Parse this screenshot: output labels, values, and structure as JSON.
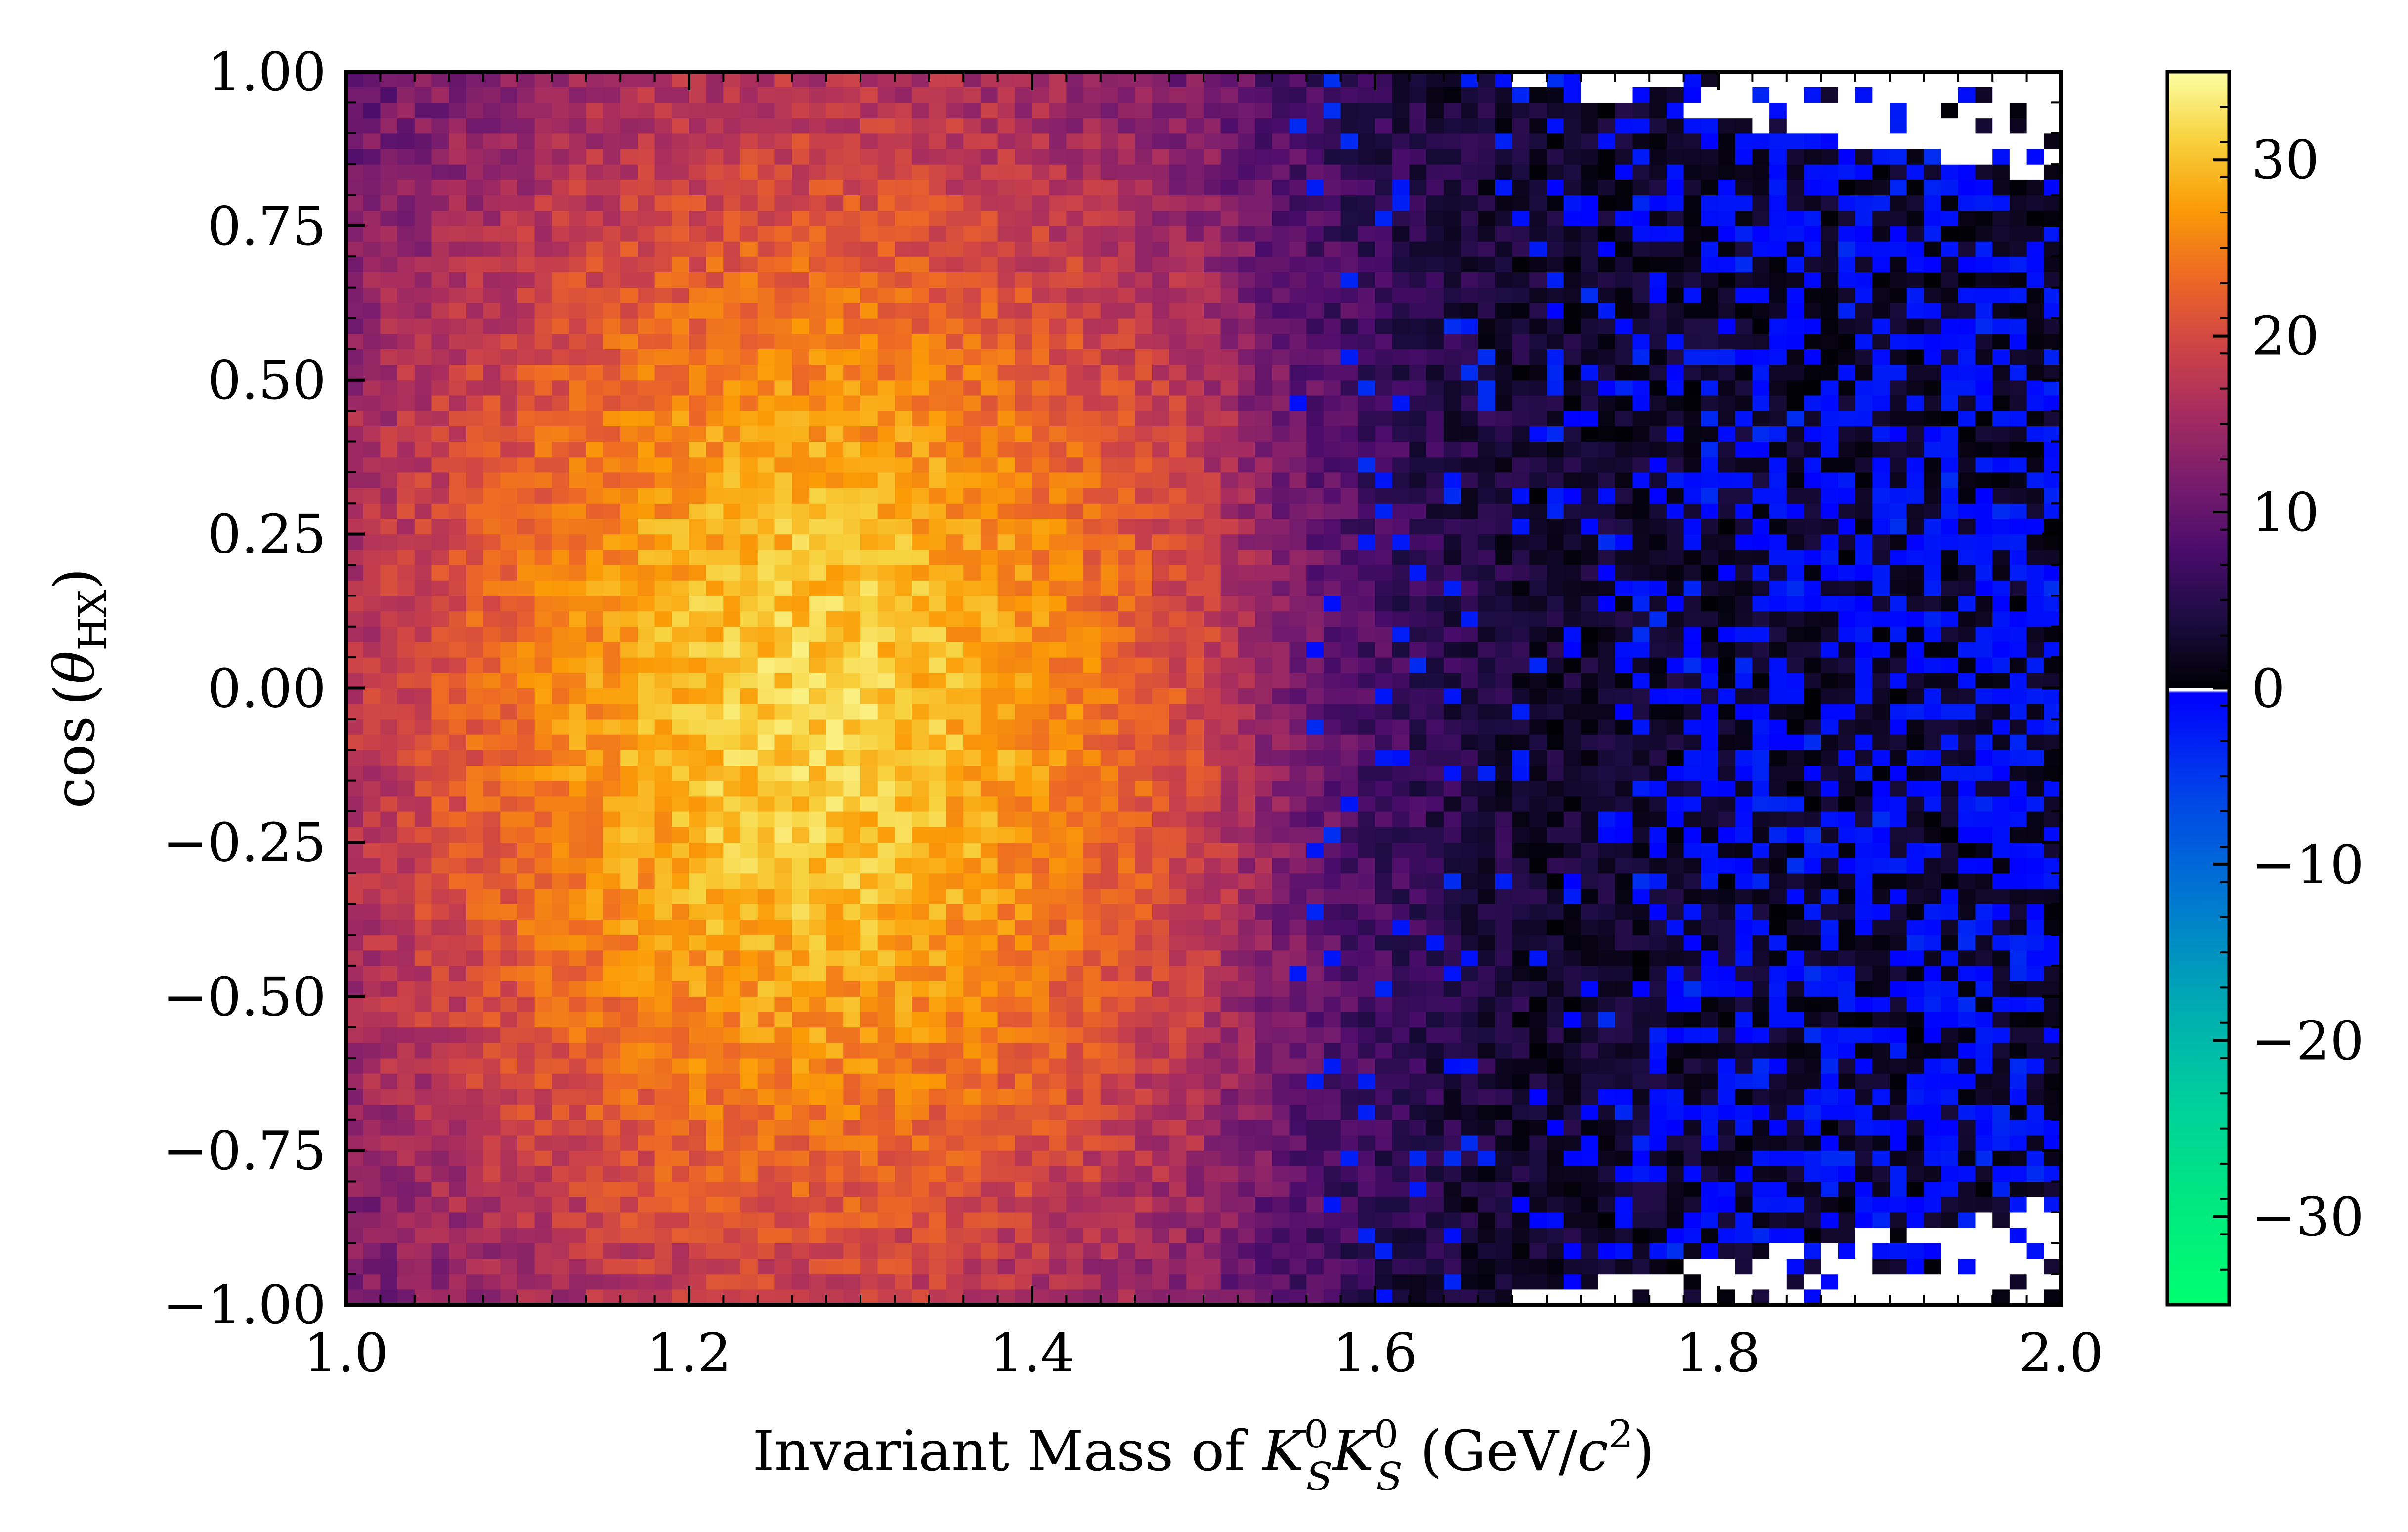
{
  "chart_data": {
    "type": "heatmap",
    "title": "",
    "xlabel": {
      "prefix": "Invariant Mass of ",
      "symbol": "K",
      "sub": "S",
      "sup": "0",
      "unit_open": " (GeV/",
      "unit_c": "c",
      "unit_sup": "2",
      "unit_close": ")"
    },
    "ylabel": {
      "func": "cos",
      "open": "(",
      "symbol": "θ",
      "sub": "HX",
      "close": ")"
    },
    "xlim": [
      1.0,
      2.0
    ],
    "ylim": [
      -1.0,
      1.0
    ],
    "x_ticks": [
      "1.0",
      "1.2",
      "1.4",
      "1.6",
      "1.8",
      "2.0"
    ],
    "x_tick_values": [
      1.0,
      1.2,
      1.4,
      1.6,
      1.8,
      2.0
    ],
    "y_ticks": [
      "1.00",
      "0.75",
      "0.50",
      "0.25",
      "0.00",
      "−0.25",
      "−0.50",
      "−0.75",
      "−1.00"
    ],
    "y_tick_values": [
      1.0,
      0.75,
      0.5,
      0.25,
      0.0,
      -0.25,
      -0.5,
      -0.75,
      -1.0
    ],
    "bins": {
      "x": 100,
      "y": 80
    },
    "colorbar": {
      "range": [
        -35,
        35
      ],
      "ticks": [
        "30",
        "20",
        "10",
        "0",
        "−10",
        "−20",
        "−30"
      ],
      "tick_values": [
        30,
        20,
        10,
        0,
        -10,
        -20,
        -30
      ],
      "positive_colormap": [
        "#000004",
        "#1b0c41",
        "#4a0c6b",
        "#781c6d",
        "#a52c60",
        "#cf4446",
        "#ed6925",
        "#fb9b06",
        "#f7d13d",
        "#fcffa4"
      ],
      "negative_colormap": [
        "#0000ff",
        "#0044e8",
        "#0077d0",
        "#00a8b4",
        "#00cf9c",
        "#00e880",
        "#00ff70"
      ]
    },
    "distribution": {
      "peak_x": 1.27,
      "peak_y": -0.05,
      "peak_value": 27,
      "sigma_x": 0.22,
      "sigma_y": 0.85,
      "falloff_start_x": 1.5,
      "noise_amplitude": 6,
      "empty_value_color": "#ffffff"
    }
  }
}
